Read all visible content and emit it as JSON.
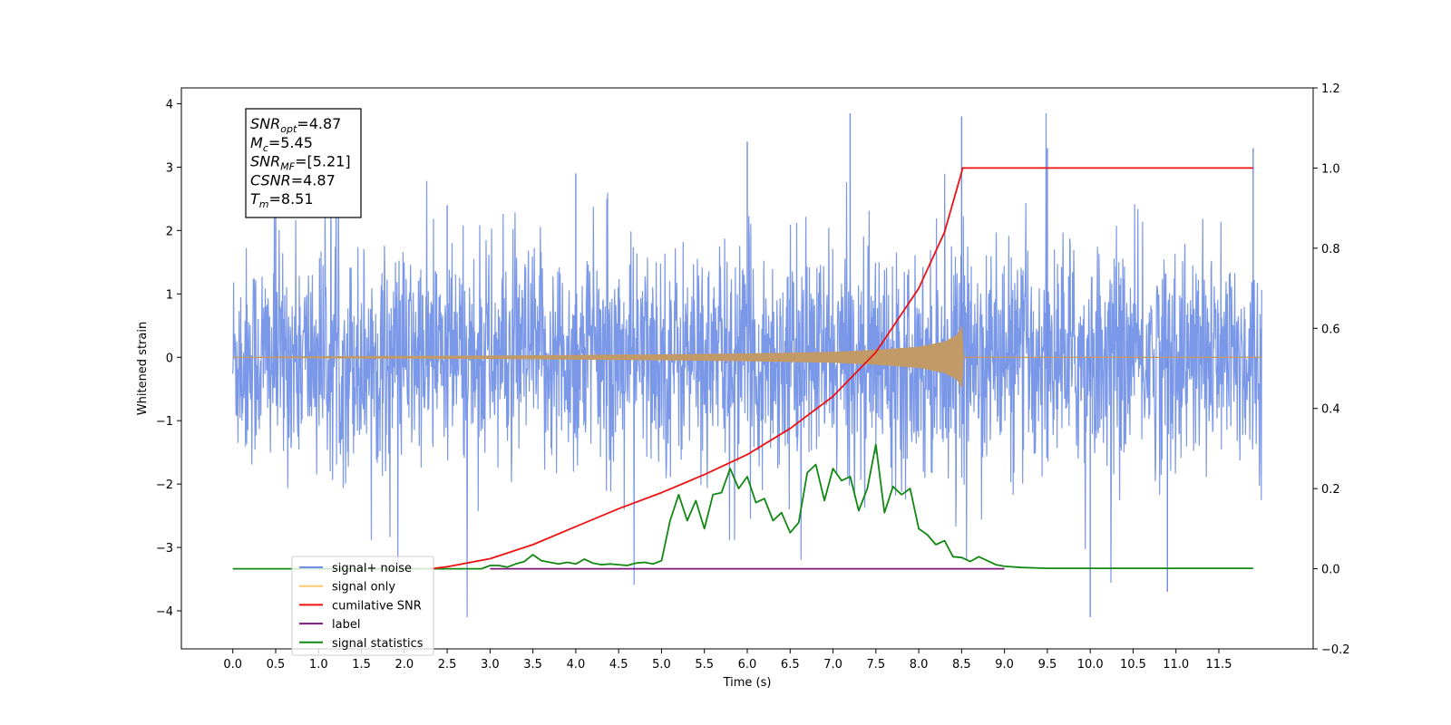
{
  "chart_data": {
    "type": "line",
    "title": "",
    "xlabel": "Time (s)",
    "ylabel": "Whitened strain",
    "ylabel_right": "",
    "xlim": [
      -0.6,
      12.6
    ],
    "ylim": [
      -4.6,
      4.25
    ],
    "ylim_right": [
      -0.2,
      1.2
    ],
    "x_ticks": [
      0.0,
      0.5,
      1.0,
      1.5,
      2.0,
      2.5,
      3.0,
      3.5,
      4.0,
      4.5,
      5.0,
      5.5,
      6.0,
      6.5,
      7.0,
      7.5,
      8.0,
      8.5,
      9.0,
      9.5,
      10.0,
      10.5,
      11.0,
      11.5
    ],
    "x_tick_labels": [
      "0.0",
      "0.5",
      "1.0",
      "1.5",
      "2.0",
      "2.5",
      "3.0",
      "3.5",
      "4.0",
      "4.5",
      "5.0",
      "5.5",
      "6.0",
      "6.5",
      "7.0",
      "7.5",
      "8.0",
      "8.5",
      "9.0",
      "9.5",
      "10.0",
      "10.5",
      "11.0",
      "11.5"
    ],
    "y_ticks": [
      4,
      3,
      2,
      1,
      0,
      -1,
      -2,
      -3,
      -4
    ],
    "y_tick_labels": [
      "4",
      "3",
      "2",
      "1",
      "0",
      "−1",
      "−2",
      "−3",
      "−4"
    ],
    "y_right_ticks": [
      1.2,
      1.0,
      0.8,
      0.6,
      0.4,
      0.2,
      0.0,
      -0.2
    ],
    "y_right_tick_labels": [
      "1.2",
      "1.0",
      "0.8",
      "0.6",
      "0.4",
      "0.2",
      "0.0",
      "−0.2"
    ],
    "grid": false,
    "legend_position": "bottom-left",
    "annotation": {
      "lines": [
        {
          "sym": "SNR",
          "sub": "opt",
          "val": "=4.87"
        },
        {
          "sym": "M",
          "sub": "c",
          "val": "=5.45"
        },
        {
          "sym": "SNR",
          "sub": "MF",
          "val": "=[5.21]"
        },
        {
          "sym": "CSNR",
          "sub": "",
          "val": "=4.87"
        },
        {
          "sym": "T",
          "sub": "m",
          "val": "=8.51"
        }
      ]
    },
    "series": [
      {
        "name": "signal+ noise",
        "axis": "left",
        "color": "#6f8ee6",
        "x_range": [
          0.0,
          12.0
        ],
        "noise_sigma": 0.85,
        "y_range": [
          -4.1,
          3.85
        ],
        "note_points": {
          "x": [
            0.5,
            2.5,
            4.0,
            6.0,
            7.2,
            8.5,
            9.5,
            10.0,
            10.9,
            11.9
          ],
          "y": [
            2.2,
            2.4,
            2.9,
            3.4,
            3.85,
            3.8,
            3.3,
            -4.1,
            -3.7,
            3.3
          ]
        }
      },
      {
        "name": "signal only",
        "axis": "left",
        "color": "#c29a68",
        "x": [
          0.0,
          1.0,
          2.0,
          3.0,
          4.0,
          5.0,
          6.0,
          7.0,
          7.5,
          8.0,
          8.3,
          8.45,
          8.51,
          8.52,
          12.0
        ],
        "envelope": [
          0.0,
          0.01,
          0.015,
          0.02,
          0.03,
          0.04,
          0.055,
          0.08,
          0.11,
          0.16,
          0.24,
          0.35,
          0.5,
          0.0,
          0.0
        ]
      },
      {
        "name": "cumilative SNR",
        "axis": "right",
        "color": "#ee1111",
        "x": [
          2.3,
          2.5,
          3.0,
          3.5,
          4.0,
          4.5,
          5.0,
          5.5,
          6.0,
          6.5,
          7.0,
          7.5,
          8.0,
          8.3,
          8.5,
          8.51,
          11.9
        ],
        "y": [
          0.0,
          0.005,
          0.025,
          0.06,
          0.105,
          0.15,
          0.19,
          0.235,
          0.285,
          0.35,
          0.43,
          0.54,
          0.7,
          0.84,
          0.99,
          1.0,
          1.0
        ]
      },
      {
        "name": "label",
        "axis": "right",
        "color": "#7b1a7b",
        "x": [
          3.0,
          9.0
        ],
        "y": [
          0.0,
          0.0
        ]
      },
      {
        "name": "signal statistics",
        "axis": "right",
        "color": "#118811",
        "x": [
          0.0,
          2.9,
          3.0,
          3.1,
          3.2,
          3.3,
          3.4,
          3.5,
          3.6,
          3.7,
          3.8,
          3.9,
          4.0,
          4.1,
          4.2,
          4.3,
          4.4,
          4.5,
          4.6,
          4.7,
          4.8,
          4.9,
          5.0,
          5.1,
          5.2,
          5.3,
          5.4,
          5.5,
          5.6,
          5.7,
          5.8,
          5.9,
          6.0,
          6.1,
          6.2,
          6.3,
          6.4,
          6.5,
          6.6,
          6.7,
          6.8,
          6.9,
          7.0,
          7.1,
          7.2,
          7.3,
          7.4,
          7.5,
          7.6,
          7.7,
          7.8,
          7.9,
          8.0,
          8.1,
          8.2,
          8.3,
          8.4,
          8.5,
          8.6,
          8.7,
          8.8,
          8.9,
          9.0,
          9.2,
          9.5,
          11.9
        ],
        "y": [
          0.0,
          0.0,
          0.008,
          0.008,
          0.004,
          0.012,
          0.018,
          0.035,
          0.02,
          0.016,
          0.012,
          0.016,
          0.012,
          0.024,
          0.014,
          0.01,
          0.012,
          0.01,
          0.008,
          0.014,
          0.016,
          0.012,
          0.02,
          0.12,
          0.185,
          0.12,
          0.17,
          0.1,
          0.185,
          0.19,
          0.25,
          0.2,
          0.23,
          0.165,
          0.175,
          0.12,
          0.14,
          0.09,
          0.115,
          0.24,
          0.26,
          0.17,
          0.25,
          0.22,
          0.23,
          0.145,
          0.2,
          0.31,
          0.14,
          0.205,
          0.185,
          0.2,
          0.1,
          0.085,
          0.06,
          0.07,
          0.03,
          0.028,
          0.018,
          0.03,
          0.02,
          0.01,
          0.006,
          0.003,
          0.001,
          0.001
        ]
      }
    ]
  }
}
